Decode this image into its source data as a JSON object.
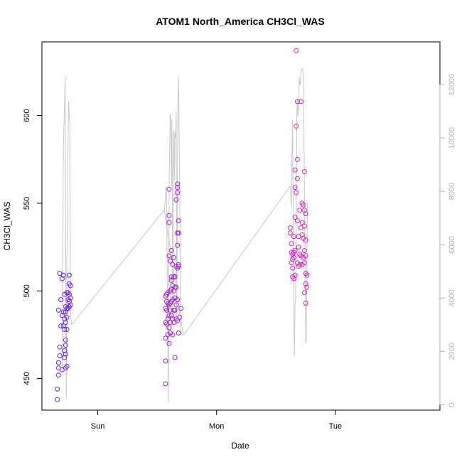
{
  "chart_data": {
    "type": "scatter",
    "title": "ATOM1 North_America CH3Cl_WAS",
    "xlabel": "Date",
    "ylabel": "CH3Cl_WAS",
    "x_unit": "days (Sun = 0)",
    "xlim": [
      -0.47,
      2.88
    ],
    "ylim": [
      432,
      642
    ],
    "x_ticks": [
      {
        "value": 0,
        "label": "Sun"
      },
      {
        "value": 1,
        "label": "Mon"
      },
      {
        "value": 2,
        "label": "Tue"
      }
    ],
    "y_ticks": [
      450,
      500,
      550,
      600
    ],
    "y2_ticks": [
      0,
      2000,
      4000,
      6000,
      8000,
      10000,
      12000
    ],
    "y2lim": [
      -200,
      13600
    ],
    "colors": {
      "axis": "#000000",
      "secondary_axis": "#b3b3b3",
      "secondary_line": "#c8c8c8",
      "point_start": "#6a1cf5",
      "point_end": "#e51ab8"
    },
    "grid": false,
    "series": [
      {
        "kind": "points",
        "color_scale": "purple-to-magenta over time",
        "points": [
          [
            -0.34,
            438
          ],
          [
            -0.34,
            444
          ],
          [
            -0.33,
            452
          ],
          [
            -0.33,
            456
          ],
          [
            -0.33,
            459
          ],
          [
            -0.32,
            463
          ],
          [
            -0.32,
            468
          ],
          [
            -0.33,
            489
          ],
          [
            -0.32,
            510
          ],
          [
            -0.31,
            480
          ],
          [
            -0.31,
            495
          ],
          [
            -0.3,
            486
          ],
          [
            -0.3,
            507
          ],
          [
            -0.3,
            455
          ],
          [
            -0.29,
            480
          ],
          [
            -0.29,
            488
          ],
          [
            -0.29,
            509
          ],
          [
            -0.28,
            462
          ],
          [
            -0.28,
            466
          ],
          [
            -0.28,
            478
          ],
          [
            -0.28,
            484
          ],
          [
            -0.28,
            498
          ],
          [
            -0.27,
            456
          ],
          [
            -0.27,
            464
          ],
          [
            -0.27,
            469
          ],
          [
            -0.27,
            472
          ],
          [
            -0.27,
            482
          ],
          [
            -0.27,
            488
          ],
          [
            -0.27,
            491
          ],
          [
            -0.26,
            457
          ],
          [
            -0.26,
            478
          ],
          [
            -0.26,
            485
          ],
          [
            -0.26,
            490
          ],
          [
            -0.26,
            499
          ],
          [
            -0.25,
            490
          ],
          [
            -0.25,
            495
          ],
          [
            -0.25,
            499
          ],
          [
            -0.24,
            491
          ],
          [
            -0.24,
            494
          ],
          [
            -0.24,
            498
          ],
          [
            -0.24,
            504
          ],
          [
            -0.24,
            509
          ],
          [
            -0.23,
            492
          ],
          [
            -0.23,
            496
          ],
          [
            -0.23,
            503
          ],
          [
            0.57,
            447
          ],
          [
            0.57,
            460
          ],
          [
            0.57,
            473
          ],
          [
            0.57,
            482
          ],
          [
            0.57,
            490
          ],
          [
            0.57,
            497
          ],
          [
            0.58,
            481
          ],
          [
            0.58,
            489
          ],
          [
            0.58,
            494
          ],
          [
            0.58,
            498
          ],
          [
            0.59,
            475
          ],
          [
            0.59,
            484
          ],
          [
            0.59,
            493
          ],
          [
            0.59,
            499
          ],
          [
            0.6,
            470
          ],
          [
            0.6,
            479
          ],
          [
            0.6,
            486
          ],
          [
            0.6,
            492
          ],
          [
            0.6,
            520
          ],
          [
            0.6,
            539
          ],
          [
            0.6,
            543
          ],
          [
            0.6,
            558
          ],
          [
            0.61,
            476
          ],
          [
            0.61,
            482
          ],
          [
            0.61,
            489
          ],
          [
            0.61,
            493
          ],
          [
            0.61,
            500
          ],
          [
            0.61,
            517
          ],
          [
            0.62,
            486
          ],
          [
            0.62,
            494
          ],
          [
            0.62,
            501
          ],
          [
            0.62,
            506
          ],
          [
            0.62,
            508
          ],
          [
            0.62,
            523
          ],
          [
            0.63,
            475
          ],
          [
            0.63,
            484
          ],
          [
            0.63,
            495
          ],
          [
            0.63,
            503
          ],
          [
            0.63,
            515
          ],
          [
            0.64,
            482
          ],
          [
            0.64,
            489
          ],
          [
            0.64,
            500
          ],
          [
            0.64,
            508
          ],
          [
            0.64,
            519
          ],
          [
            0.65,
            462
          ],
          [
            0.65,
            489
          ],
          [
            0.65,
            496
          ],
          [
            0.65,
            502
          ],
          [
            0.65,
            508
          ],
          [
            0.66,
            484
          ],
          [
            0.66,
            492
          ],
          [
            0.66,
            502
          ],
          [
            0.66,
            514
          ],
          [
            0.66,
            552
          ],
          [
            0.67,
            483
          ],
          [
            0.67,
            495
          ],
          [
            0.67,
            513
          ],
          [
            0.67,
            526
          ],
          [
            0.67,
            533
          ],
          [
            0.67,
            556
          ],
          [
            0.67,
            559
          ],
          [
            0.67,
            561
          ],
          [
            0.68,
            515
          ],
          [
            0.68,
            533
          ],
          [
            0.68,
            540
          ],
          [
            0.68,
            514
          ],
          [
            0.68,
            476
          ],
          [
            0.69,
            485
          ],
          [
            0.7,
            490
          ],
          [
            1.62,
            533
          ],
          [
            1.62,
            536
          ],
          [
            1.63,
            516
          ],
          [
            1.63,
            522
          ],
          [
            1.63,
            527
          ],
          [
            1.64,
            508
          ],
          [
            1.64,
            513
          ],
          [
            1.64,
            518
          ],
          [
            1.64,
            521
          ],
          [
            1.65,
            507
          ],
          [
            1.65,
            519
          ],
          [
            1.65,
            522
          ],
          [
            1.65,
            531
          ],
          [
            1.66,
            509
          ],
          [
            1.66,
            523
          ],
          [
            1.66,
            542
          ],
          [
            1.66,
            559
          ],
          [
            1.66,
            569
          ],
          [
            1.67,
            556
          ],
          [
            1.67,
            594
          ],
          [
            1.67,
            637
          ],
          [
            1.68,
            516
          ],
          [
            1.68,
            540
          ],
          [
            1.68,
            564
          ],
          [
            1.68,
            575
          ],
          [
            1.68,
            608
          ],
          [
            1.69,
            514
          ],
          [
            1.69,
            525
          ],
          [
            1.69,
            531
          ],
          [
            1.7,
            515
          ],
          [
            1.7,
            521
          ],
          [
            1.7,
            546
          ],
          [
            1.71,
            520
          ],
          [
            1.71,
            536
          ],
          [
            1.71,
            608
          ],
          [
            1.72,
            515
          ],
          [
            1.72,
            532
          ],
          [
            1.72,
            539
          ],
          [
            1.72,
            550
          ],
          [
            1.73,
            519
          ],
          [
            1.73,
            530
          ],
          [
            1.73,
            549
          ],
          [
            1.74,
            499
          ],
          [
            1.74,
            516
          ],
          [
            1.74,
            523
          ],
          [
            1.74,
            537
          ],
          [
            1.74,
            546
          ],
          [
            1.74,
            568
          ],
          [
            1.75,
            504
          ],
          [
            1.75,
            510
          ],
          [
            1.75,
            520
          ],
          [
            1.75,
            529
          ],
          [
            1.75,
            544
          ],
          [
            1.75,
            493
          ],
          [
            1.76,
            502
          ],
          [
            1.76,
            509
          ]
        ]
      },
      {
        "kind": "line",
        "axis": "secondary",
        "color": "#c8c8c8",
        "points": [
          [
            -0.3,
            1200
          ],
          [
            -0.29,
            9500
          ],
          [
            -0.285,
            10400
          ],
          [
            -0.28,
            11200
          ],
          [
            -0.275,
            12300
          ],
          [
            -0.27,
            6000
          ],
          [
            -0.265,
            200
          ],
          [
            -0.26,
            5500
          ],
          [
            -0.255,
            6500
          ],
          [
            -0.25,
            10000
          ],
          [
            -0.245,
            11400
          ],
          [
            -0.24,
            10800
          ],
          [
            -0.235,
            10500
          ],
          [
            -0.23,
            3400
          ],
          [
            -0.22,
            3000
          ],
          [
            0.56,
            7300
          ],
          [
            0.57,
            7800
          ],
          [
            0.575,
            8200
          ],
          [
            0.58,
            7400
          ],
          [
            0.59,
            2200
          ],
          [
            0.595,
            100
          ],
          [
            0.6,
            8200
          ],
          [
            0.605,
            9600
          ],
          [
            0.61,
            10900
          ],
          [
            0.615,
            10700
          ],
          [
            0.62,
            8200
          ],
          [
            0.625,
            10700
          ],
          [
            0.63,
            3000
          ],
          [
            0.635,
            8600
          ],
          [
            0.64,
            10300
          ],
          [
            0.645,
            8400
          ],
          [
            0.65,
            10200
          ],
          [
            0.655,
            10000
          ],
          [
            0.66,
            11000
          ],
          [
            0.665,
            3000
          ],
          [
            0.67,
            8200
          ],
          [
            0.675,
            11500
          ],
          [
            0.68,
            12300
          ],
          [
            0.69,
            8000
          ],
          [
            0.695,
            3100
          ],
          [
            0.7,
            2800
          ],
          [
            0.71,
            2600
          ],
          [
            1.62,
            8200
          ],
          [
            1.63,
            7400
          ],
          [
            1.635,
            9800
          ],
          [
            1.64,
            10700
          ],
          [
            1.645,
            6200
          ],
          [
            1.65,
            3800
          ],
          [
            1.655,
            1800
          ],
          [
            1.66,
            3700
          ],
          [
            1.665,
            4000
          ],
          [
            1.67,
            6800
          ],
          [
            1.675,
            10800
          ],
          [
            1.68,
            11500
          ],
          [
            1.685,
            10800
          ],
          [
            1.69,
            11200
          ],
          [
            1.695,
            12300
          ],
          [
            1.7,
            12000
          ],
          [
            1.705,
            12000
          ],
          [
            1.71,
            12500
          ],
          [
            1.72,
            12600
          ],
          [
            1.73,
            12400
          ],
          [
            1.74,
            7800
          ],
          [
            1.75,
            2300
          ],
          [
            1.755,
            2400
          ],
          [
            1.76,
            4800
          ],
          [
            1.765,
            7600
          ]
        ]
      },
      {
        "kind": "connector",
        "axis": "secondary",
        "color": "#c8c8c8",
        "points": [
          [
            -0.22,
            3000
          ],
          [
            0.56,
            7300
          ],
          [
            0.56,
            7300
          ],
          [
            0.72,
            2600
          ],
          [
            0.72,
            2600
          ],
          [
            1.62,
            8200
          ]
        ]
      }
    ]
  }
}
